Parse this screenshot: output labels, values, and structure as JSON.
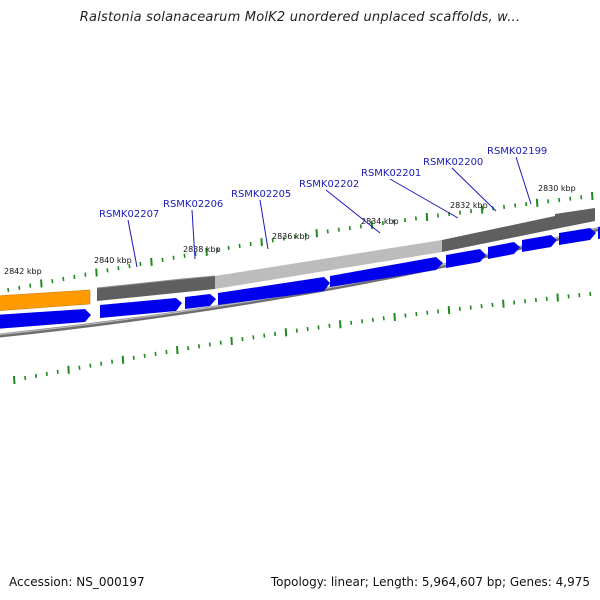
{
  "title": "Ralstonia solanacearum MolK2 unordered unplaced scaffolds, w...",
  "footer": {
    "accession": "Accession: NS_000197",
    "summary": "Topology: linear; Length: 5,964,607 bp; Genes: 4,975"
  },
  "colors": {
    "gene_blue": "#0000ee",
    "label_blue": "#1a1ab8",
    "tick_green": "#1f8a1f",
    "orange": "#ff9a00",
    "dark_gray": "#5a5a5a",
    "light_gray": "#bdbdbd"
  },
  "kbp_labels": [
    "2842 kbp",
    "2840 kbp",
    "2838 kbp",
    "2836 kbp",
    "2834 kbp",
    "2832 kbp",
    "2830 kbp"
  ],
  "gene_labels": [
    "RSMK02207",
    "RSMK02206",
    "RSMK02205",
    "RSMK02202",
    "RSMK02201",
    "RSMK02200",
    "RSMK02199"
  ]
}
